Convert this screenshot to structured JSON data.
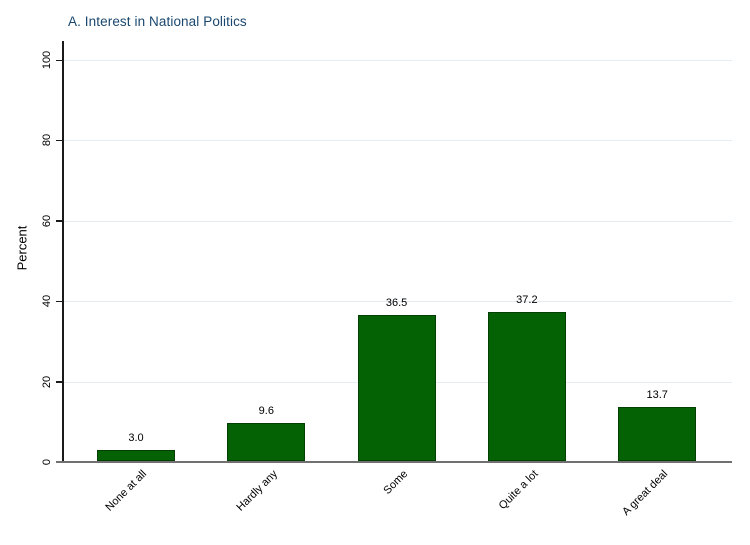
{
  "chart_data": {
    "type": "bar",
    "title": "A. Interest in National Politics",
    "categories": [
      "None at all",
      "Hardly any",
      "Some",
      "Quite a lot",
      "A great deal"
    ],
    "values": [
      3.0,
      9.6,
      36.5,
      37.2,
      13.7
    ],
    "value_labels": [
      "3.0",
      "9.6",
      "36.5",
      "37.2",
      "13.7"
    ],
    "xlabel": "",
    "ylabel": "Percent",
    "ylim": [
      0,
      100
    ],
    "yticks": [
      0,
      20,
      40,
      60,
      80,
      100
    ],
    "grid": "horizontal",
    "legend": "none",
    "colors": {
      "bar_fill": "#046204",
      "bar_border": "#033f03",
      "title_text": "#1a476f",
      "gridline": "#e4edf3",
      "y_axis_line": "#1a1a1a",
      "x_axis_line": "#707070",
      "tick": "#1a1a1a",
      "label_text": "#000000",
      "background": "#ffffff"
    }
  }
}
